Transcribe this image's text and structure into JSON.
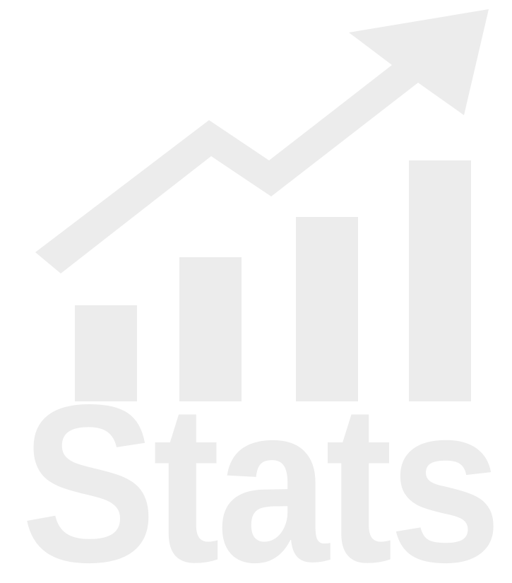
{
  "logo": {
    "word": "Stats",
    "color": "#ececec",
    "background": "#ffffff",
    "icon": "bar-chart-trend-arrow-icon",
    "bars": [
      0.24,
      0.36,
      0.46,
      0.6
    ]
  }
}
